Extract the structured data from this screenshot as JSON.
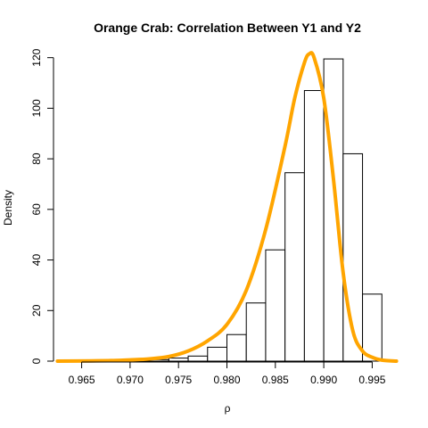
{
  "chart_data": {
    "type": "histogram",
    "title": "Orange Crab: Correlation Between Y1 and Y2",
    "xlabel": "ρ",
    "ylabel": "Density",
    "xlim": [
      0.962,
      0.998
    ],
    "ylim": [
      0,
      122
    ],
    "x_ticks": [
      0.965,
      0.97,
      0.975,
      0.98,
      0.985,
      0.99,
      0.995
    ],
    "x_tick_labels": [
      "0.965",
      "0.970",
      "0.975",
      "0.980",
      "0.985",
      "0.990",
      "0.995"
    ],
    "y_ticks": [
      0,
      20,
      40,
      60,
      80,
      100,
      120
    ],
    "y_tick_labels": [
      "0",
      "20",
      "40",
      "60",
      "80",
      "100",
      "120"
    ],
    "grid": false,
    "histogram": {
      "bin_edges": [
        0.968,
        0.97,
        0.972,
        0.974,
        0.976,
        0.978,
        0.98,
        0.982,
        0.984,
        0.986,
        0.988,
        0.99,
        0.992,
        0.994,
        0.996
      ],
      "values": [
        0.3,
        0.5,
        0.6,
        1.2,
        2.0,
        5.5,
        10.5,
        23.0,
        44.0,
        74.5,
        107.0,
        119.5,
        82.0,
        26.5,
        1.5
      ],
      "bar_fill": "#ffffff",
      "bar_stroke": "#000000"
    },
    "density_curve": {
      "color": "#FFA500",
      "x": [
        0.9625,
        0.966,
        0.968,
        0.97,
        0.972,
        0.974,
        0.976,
        0.978,
        0.98,
        0.982,
        0.984,
        0.986,
        0.987,
        0.988,
        0.9885,
        0.989,
        0.99,
        0.991,
        0.992,
        0.993,
        0.994,
        0.995,
        0.996,
        0.9975
      ],
      "y": [
        0.0,
        0.1,
        0.2,
        0.5,
        0.9,
        1.8,
        4.0,
        8.0,
        14.5,
        28.0,
        52.0,
        85.0,
        104.0,
        118.0,
        121.5,
        120.0,
        104.0,
        72.0,
        35.0,
        12.0,
        4.0,
        1.5,
        0.4,
        0.0
      ]
    }
  }
}
